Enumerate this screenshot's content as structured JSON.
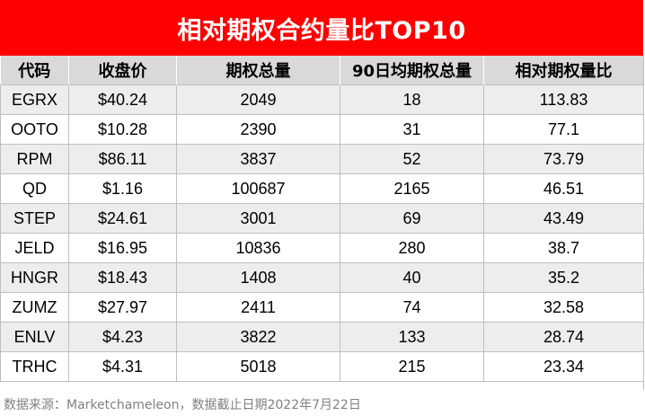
{
  "title": "相对期权合约量比TOP10",
  "headers": [
    "代码",
    "收盘价",
    "期权总量",
    "90日均期权总量",
    "相对期权量比"
  ],
  "rows": [
    [
      "EGRX",
      "$40.24",
      "2049",
      "18",
      "113.83"
    ],
    [
      "OOTO",
      "$10.28",
      "2390",
      "31",
      "77.1"
    ],
    [
      "RPM",
      "$86.11",
      "3837",
      "52",
      "73.79"
    ],
    [
      "QD",
      "$1.16",
      "100687",
      "2165",
      "46.51"
    ],
    [
      "STEP",
      "$24.61",
      "3001",
      "69",
      "43.49"
    ],
    [
      "JELD",
      "$16.95",
      "10836",
      "280",
      "38.7"
    ],
    [
      "HNGR",
      "$18.43",
      "1408",
      "40",
      "35.2"
    ],
    [
      "ZUMZ",
      "$27.97",
      "2411",
      "74",
      "32.58"
    ],
    [
      "ENLV",
      "$4.23",
      "3822",
      "133",
      "28.74"
    ],
    [
      "TRHC",
      "$4.31",
      "5018",
      "215",
      "23.34"
    ]
  ],
  "footnote": "数据来源：Marketchameleon，数据截止日期2022年7月22日",
  "colors": {
    "title_background": "#ff0000",
    "header_background": "#d9d9d9",
    "shaded_row": "#ededed",
    "footnote_text": "#808080"
  }
}
